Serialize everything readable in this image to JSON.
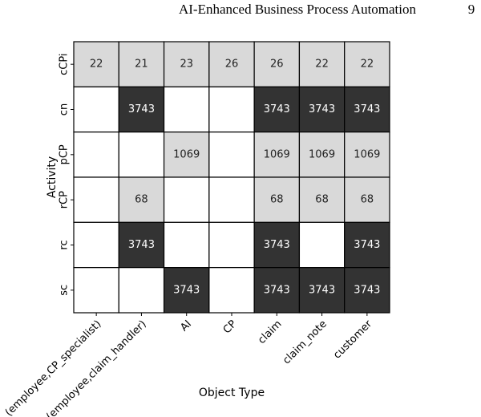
{
  "page_header": {
    "title": "AI-Enhanced Business Process Automation",
    "page_number": 9
  },
  "chart_data": {
    "type": "heatmap",
    "x_label": "Object Type",
    "y_label": "Activity",
    "x_categories": [
      "(employee,CP_specialist)",
      "(employee,claim_handler)",
      "AI",
      "CP",
      "claim",
      "claim_note",
      "customer"
    ],
    "y_categories": [
      "cCPi",
      "cn",
      "pCP",
      "rCP",
      "rc",
      "sc"
    ],
    "values": [
      [
        22,
        21,
        23,
        26,
        26,
        22,
        22
      ],
      [
        null,
        3743,
        null,
        null,
        3743,
        3743,
        3743
      ],
      [
        null,
        null,
        1069,
        null,
        1069,
        1069,
        1069
      ],
      [
        null,
        68,
        null,
        null,
        68,
        68,
        68
      ],
      [
        null,
        3743,
        null,
        null,
        3743,
        null,
        3743
      ],
      [
        null,
        null,
        3743,
        null,
        3743,
        3743,
        3743
      ]
    ],
    "colors": {
      "low": "#d9d9d9",
      "high": "#333333",
      "empty": "#ffffff"
    }
  }
}
